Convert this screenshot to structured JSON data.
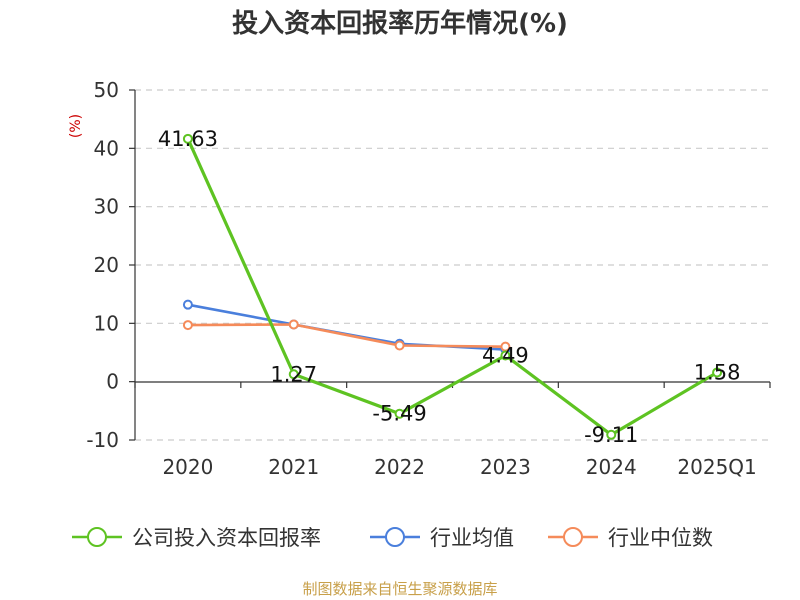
{
  "chart_data": {
    "type": "line",
    "title": "投入资本回报率历年情况(%)",
    "unit_label": "(%)",
    "categories": [
      "2020",
      "2021",
      "2022",
      "2023",
      "2024",
      "2025Q1"
    ],
    "ylim": [
      -10,
      50
    ],
    "yticks": [
      "50",
      "40",
      "30",
      "20",
      "10",
      "0",
      "-10"
    ],
    "grid": true,
    "legend_position": "bottom",
    "series": [
      {
        "name": "公司投入资本回报率",
        "color": "#5ec322",
        "values": [
          41.63,
          1.27,
          -5.49,
          4.49,
          -9.11,
          1.58
        ],
        "labels": [
          "41.63",
          "1.27",
          "-5.49",
          "4.49",
          "-9.11",
          "1.58"
        ]
      },
      {
        "name": "行业均值",
        "color": "#4a7fdc",
        "values": [
          13.2,
          9.8,
          6.5,
          5.5,
          null,
          null
        ]
      },
      {
        "name": "行业中位数",
        "color": "#f58b5a",
        "values": [
          9.7,
          9.8,
          6.2,
          6.0,
          null,
          null
        ]
      }
    ]
  },
  "source": "制图数据来自恒生聚源数据库"
}
